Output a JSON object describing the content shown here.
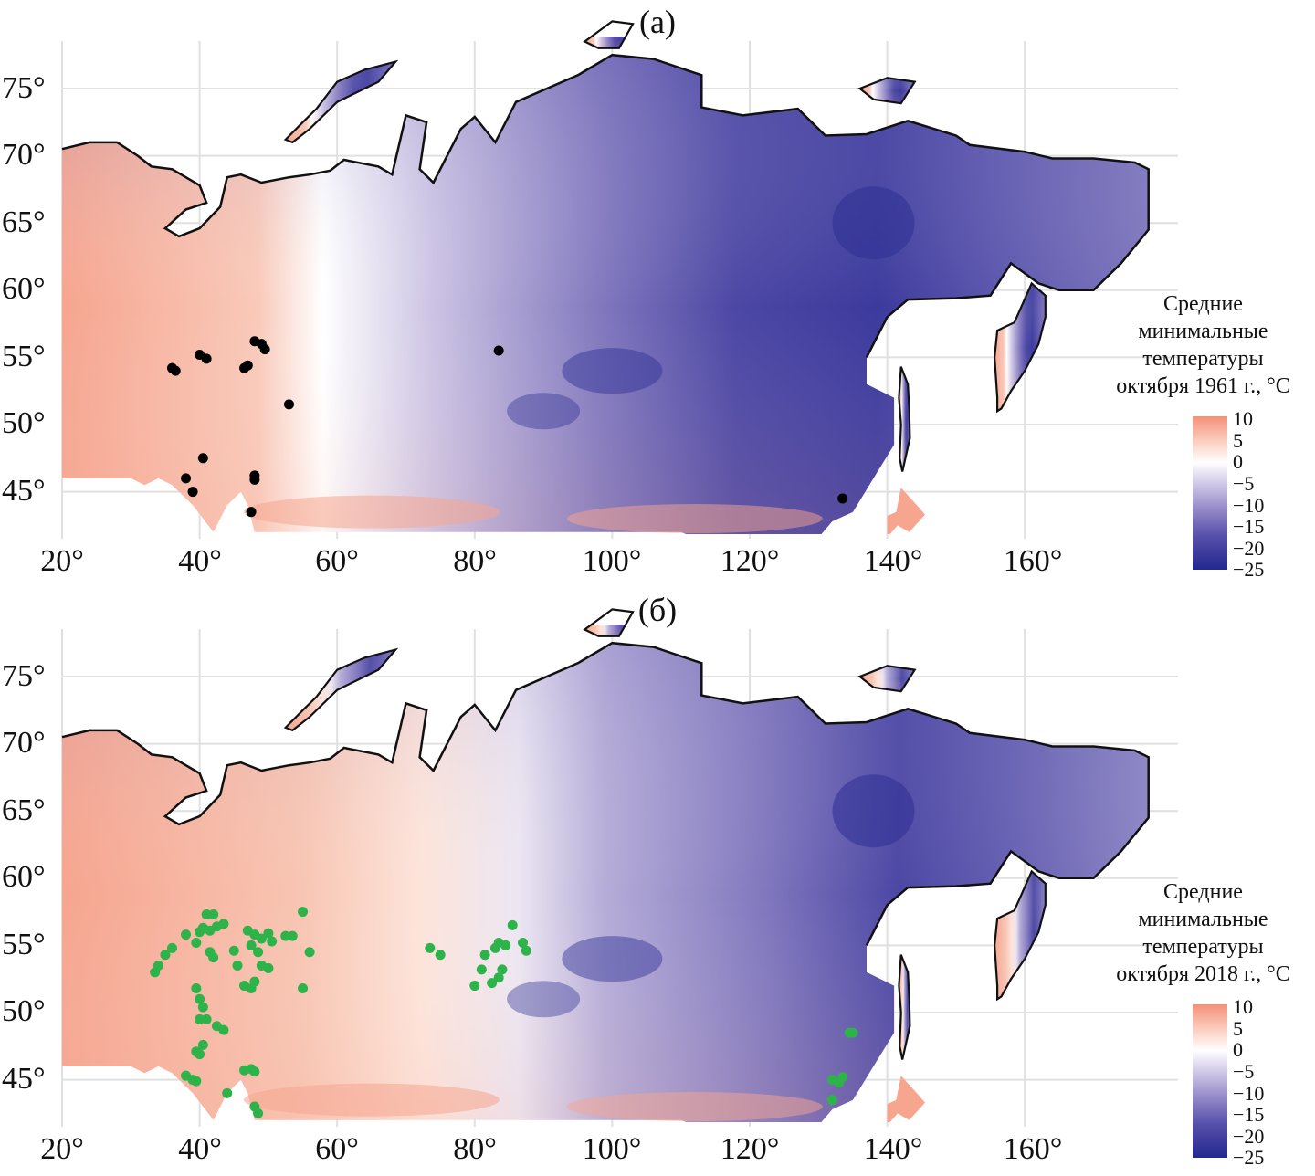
{
  "panels": [
    {
      "label": "(а)",
      "legend": {
        "title_lines": [
          "Средние",
          "минимальные",
          "температуры",
          "октября 1961 г., °C"
        ],
        "ticks": [
          "10",
          "5",
          "0",
          "−5",
          "−10",
          "−15",
          "−20",
          "−25"
        ]
      },
      "point_color": "#000000",
      "points": [
        [
          36,
          54.2
        ],
        [
          36.5,
          54.0
        ],
        [
          40,
          55.2
        ],
        [
          41,
          54.9
        ],
        [
          46.5,
          54.2
        ],
        [
          47,
          54.4
        ],
        [
          48,
          56.2
        ],
        [
          49,
          56
        ],
        [
          49.5,
          55.6
        ],
        [
          53,
          51.5
        ],
        [
          83.5,
          55.5
        ],
        [
          40.5,
          47.5
        ],
        [
          38,
          46
        ],
        [
          39,
          45
        ],
        [
          48,
          46.2
        ],
        [
          48,
          45.9
        ],
        [
          47.5,
          43.5
        ],
        [
          133.5,
          44.5
        ]
      ]
    },
    {
      "label": "(б)",
      "legend": {
        "title_lines": [
          "Средние",
          "минимальные",
          "температуры",
          "октября 2018 г., °C"
        ],
        "ticks": [
          "10",
          "5",
          "0",
          "−5",
          "−10",
          "−15",
          "−20",
          "−25"
        ]
      },
      "point_color": "#2db34a",
      "points": [
        [
          33.5,
          53
        ],
        [
          34,
          53.5
        ],
        [
          35,
          54.3
        ],
        [
          36,
          54.8
        ],
        [
          38,
          55.8
        ],
        [
          39.5,
          55.2
        ],
        [
          40,
          56
        ],
        [
          40.5,
          56.3
        ],
        [
          41,
          57.3
        ],
        [
          42,
          57.3
        ],
        [
          42.5,
          56.4
        ],
        [
          43.5,
          56.6
        ],
        [
          41.5,
          56.1
        ],
        [
          41.5,
          54.5
        ],
        [
          42,
          54.1
        ],
        [
          45.5,
          53.5
        ],
        [
          45,
          54.6
        ],
        [
          47,
          56.1
        ],
        [
          48,
          55.8
        ],
        [
          49,
          55.5
        ],
        [
          50,
          55.9
        ],
        [
          50.5,
          55.3
        ],
        [
          52.5,
          55.7
        ],
        [
          53.5,
          55.7
        ],
        [
          55,
          57.5
        ],
        [
          47.5,
          55
        ],
        [
          48.5,
          54.5
        ],
        [
          49,
          53.5
        ],
        [
          50,
          53.3
        ],
        [
          46.5,
          52
        ],
        [
          47.5,
          51.8
        ],
        [
          48,
          52.3
        ],
        [
          55,
          51.8
        ],
        [
          56,
          54.5
        ],
        [
          39.5,
          51.8
        ],
        [
          40,
          51
        ],
        [
          40.5,
          50.4
        ],
        [
          40,
          49.5
        ],
        [
          41,
          49.5
        ],
        [
          42.5,
          49
        ],
        [
          43.5,
          48.7
        ],
        [
          40.5,
          47.6
        ],
        [
          39.5,
          47.1
        ],
        [
          40,
          46.9
        ],
        [
          38,
          45.3
        ],
        [
          39,
          45
        ],
        [
          39.5,
          44.9
        ],
        [
          44,
          44
        ],
        [
          46.5,
          45.7
        ],
        [
          47.5,
          45.8
        ],
        [
          48,
          45.6
        ],
        [
          48,
          43
        ],
        [
          48.5,
          42.5
        ],
        [
          73.5,
          54.8
        ],
        [
          75,
          54.3
        ],
        [
          81,
          53.2
        ],
        [
          81.5,
          54.3
        ],
        [
          83,
          54.8
        ],
        [
          83.5,
          55.2
        ],
        [
          84.5,
          55
        ],
        [
          85.5,
          56.5
        ],
        [
          84,
          53.2
        ],
        [
          83.5,
          52.6
        ],
        [
          82.5,
          52.2
        ],
        [
          80,
          52
        ],
        [
          87.5,
          54.6
        ],
        [
          87,
          55.2
        ],
        [
          132,
          45
        ],
        [
          133,
          44.8
        ],
        [
          133.5,
          45.2
        ],
        [
          134.5,
          48.5
        ],
        [
          135,
          48.5
        ],
        [
          132,
          43.5
        ]
      ]
    }
  ],
  "axes": {
    "lat_ticks": [
      "75°",
      "70°",
      "65°",
      "60°",
      "55°",
      "50°",
      "45°"
    ],
    "lon_ticks": [
      "20°",
      "40°",
      "60°",
      "80°",
      "100°",
      "120°",
      "140°",
      "160°"
    ]
  },
  "colors": {
    "warm": "#f4907a",
    "neutral": "#ffffff",
    "cold": "#22288f",
    "coast": "#111111",
    "grid": "#e0e0e0"
  }
}
